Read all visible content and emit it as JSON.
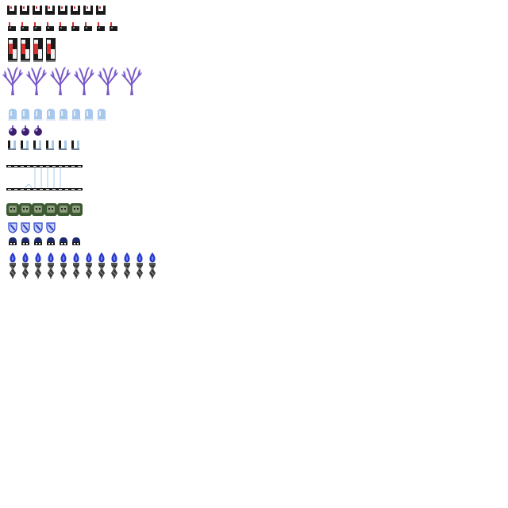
{
  "sheet": {
    "background": "#ffffff",
    "rows": [
      {
        "id": "dark-cups",
        "sprite": "dark-cup-icon",
        "count": 8
      },
      {
        "id": "small-pedestals",
        "sprite": "small-pedestal-icon",
        "count": 9
      },
      {
        "id": "red-banners",
        "sprite": "red-banner-icon",
        "count": 4
      },
      {
        "id": "purple-trees",
        "sprite": "bare-purple-tree-icon",
        "count": 6
      },
      {
        "id": "tombstones",
        "sprite": "tombstone-icon",
        "count": 8
      },
      {
        "id": "bombs",
        "sprite": "purple-bomb-icon",
        "count": 3
      },
      {
        "id": "bars",
        "sprite": "u-bar-icon",
        "count": 6
      },
      {
        "id": "film-strip",
        "sprite": "film-strip-icon",
        "count": 1
      },
      {
        "id": "green-tiles",
        "sprite": "green-skull-tile-icon",
        "count": 6
      },
      {
        "id": "shields",
        "sprite": "blue-shield-icon",
        "count": 4
      },
      {
        "id": "blue-helmets",
        "sprite": "blue-helmet-icon",
        "count": 6
      },
      {
        "id": "flame-torches",
        "sprite": "blue-flame-torch-icon",
        "count": 12
      }
    ],
    "colors": {
      "dark": "#1a1a1a",
      "red": "#d83030",
      "purple": "#7a5ac8",
      "lilac": "#b9a8f0",
      "ice": "#a8c8ec",
      "green": "#3d5a33",
      "blue": "#2a3cc8"
    }
  }
}
